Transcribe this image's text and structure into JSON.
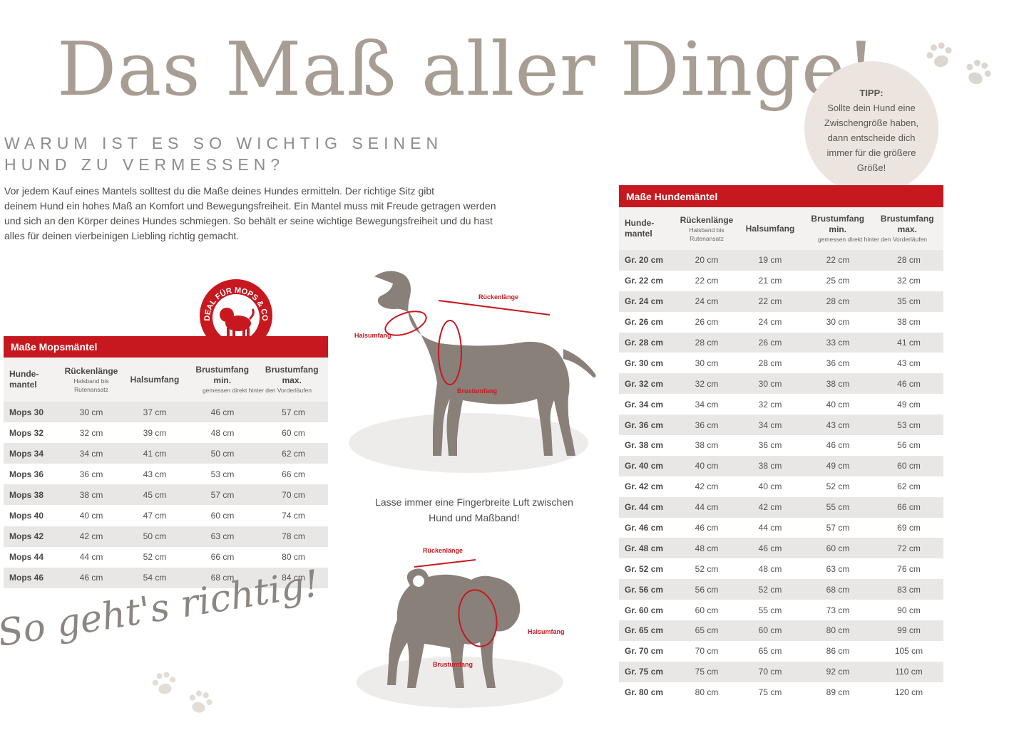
{
  "header": {
    "title": "Das Maß aller Dinge!",
    "subtitle_line1": "WARUM IST ES SO WICHTIG SEINEN",
    "subtitle_line2": "HUND ZU VERMESSEN?"
  },
  "intro": {
    "line1": "Vor jedem Kauf eines Mantels solltest du die Maße deines Hundes ermitteln. Der richtige Sitz gibt",
    "line2": "deinem Hund ein hohes Maß an Komfort und Bewegungsfreiheit. Ein Mantel muss mit Freude getragen werden",
    "line3": "und sich an den Körper deines Hundes schmiegen. So behält er seine wichtige Bewegungsfreiheit und du hast",
    "line4": "alles für deinen vierbeinigen Liebling richtig gemacht."
  },
  "tip": {
    "title": "TIPP:",
    "line1": "Sollte dein Hund eine",
    "line2": "Zwischengröße haben,",
    "line3": "dann entscheide dich",
    "line4": "immer für die größere",
    "line5": "Größe!"
  },
  "badge": {
    "text": "IDEAL FÜR MOPS & CO."
  },
  "colors": {
    "accent": "#c8181f",
    "title": "#a79d93",
    "silhouette": "#8a807a"
  },
  "columns": {
    "col1": "Hunde-mantel",
    "col2": "Rückenlänge",
    "col2_sub": "Halsband bis Rutenansatz",
    "col3": "Halsumfang",
    "col4": "Brustumfang min.",
    "col5": "Brustumfang max.",
    "col45_sub": "gemessen direkt hinter den Vorderläufen"
  },
  "mops_table": {
    "title": "Maße Mopsmäntel",
    "rows": [
      [
        "Mops 30",
        "30 cm",
        "37 cm",
        "46 cm",
        "57 cm"
      ],
      [
        "Mops 32",
        "32 cm",
        "39 cm",
        "48 cm",
        "60 cm"
      ],
      [
        "Mops 34",
        "34 cm",
        "41 cm",
        "50 cm",
        "62 cm"
      ],
      [
        "Mops 36",
        "36 cm",
        "43 cm",
        "53 cm",
        "66 cm"
      ],
      [
        "Mops 38",
        "38 cm",
        "45 cm",
        "57 cm",
        "70 cm"
      ],
      [
        "Mops 40",
        "40 cm",
        "47 cm",
        "60 cm",
        "74 cm"
      ],
      [
        "Mops 42",
        "42 cm",
        "50 cm",
        "63 cm",
        "78 cm"
      ],
      [
        "Mops 44",
        "44 cm",
        "52 cm",
        "66 cm",
        "80 cm"
      ],
      [
        "Mops 46",
        "46 cm",
        "54 cm",
        "68 cm",
        "84 cm"
      ]
    ]
  },
  "hund_table": {
    "title": "Maße Hundemäntel",
    "rows": [
      [
        "Gr. 20 cm",
        "20 cm",
        "19 cm",
        "22 cm",
        "28 cm"
      ],
      [
        "Gr. 22 cm",
        "22 cm",
        "21 cm",
        "25 cm",
        "32 cm"
      ],
      [
        "Gr. 24 cm",
        "24 cm",
        "22 cm",
        "28 cm",
        "35 cm"
      ],
      [
        "Gr. 26 cm",
        "26 cm",
        "24 cm",
        "30 cm",
        "38 cm"
      ],
      [
        "Gr. 28 cm",
        "28 cm",
        "26 cm",
        "33 cm",
        "41 cm"
      ],
      [
        "Gr. 30 cm",
        "30 cm",
        "28 cm",
        "36 cm",
        "43 cm"
      ],
      [
        "Gr. 32 cm",
        "32 cm",
        "30 cm",
        "38 cm",
        "46 cm"
      ],
      [
        "Gr. 34 cm",
        "34 cm",
        "32 cm",
        "40 cm",
        "49 cm"
      ],
      [
        "Gr. 36 cm",
        "36 cm",
        "34 cm",
        "43 cm",
        "53 cm"
      ],
      [
        "Gr. 38 cm",
        "38 cm",
        "36 cm",
        "46 cm",
        "56 cm"
      ],
      [
        "Gr. 40 cm",
        "40 cm",
        "38 cm",
        "49 cm",
        "60 cm"
      ],
      [
        "Gr. 42 cm",
        "42 cm",
        "40 cm",
        "52 cm",
        "62 cm"
      ],
      [
        "Gr. 44 cm",
        "44 cm",
        "42 cm",
        "55 cm",
        "66 cm"
      ],
      [
        "Gr. 46 cm",
        "46 cm",
        "44 cm",
        "57 cm",
        "69 cm"
      ],
      [
        "Gr. 48 cm",
        "48 cm",
        "46 cm",
        "60 cm",
        "72 cm"
      ],
      [
        "Gr. 52 cm",
        "52 cm",
        "48 cm",
        "63 cm",
        "76 cm"
      ],
      [
        "Gr. 56 cm",
        "56 cm",
        "52 cm",
        "68 cm",
        "83 cm"
      ],
      [
        "Gr. 60 cm",
        "60 cm",
        "55 cm",
        "73 cm",
        "90 cm"
      ],
      [
        "Gr. 65 cm",
        "65 cm",
        "60 cm",
        "80 cm",
        "99 cm"
      ],
      [
        "Gr. 70 cm",
        "70 cm",
        "65 cm",
        "86 cm",
        "105 cm"
      ],
      [
        "Gr. 75 cm",
        "75 cm",
        "70 cm",
        "92 cm",
        "110 cm"
      ],
      [
        "Gr. 80 cm",
        "80 cm",
        "75 cm",
        "89 cm",
        "120 cm"
      ]
    ]
  },
  "measure_labels": {
    "back": "Rückenlänge",
    "neck": "Halsumfang",
    "chest": "Brustumfang"
  },
  "caption": {
    "line1": "Lasse immer eine Fingerbreite Luft zwischen",
    "line2": "Hund und Maßband!"
  },
  "script_text": "So geht's richtig!"
}
